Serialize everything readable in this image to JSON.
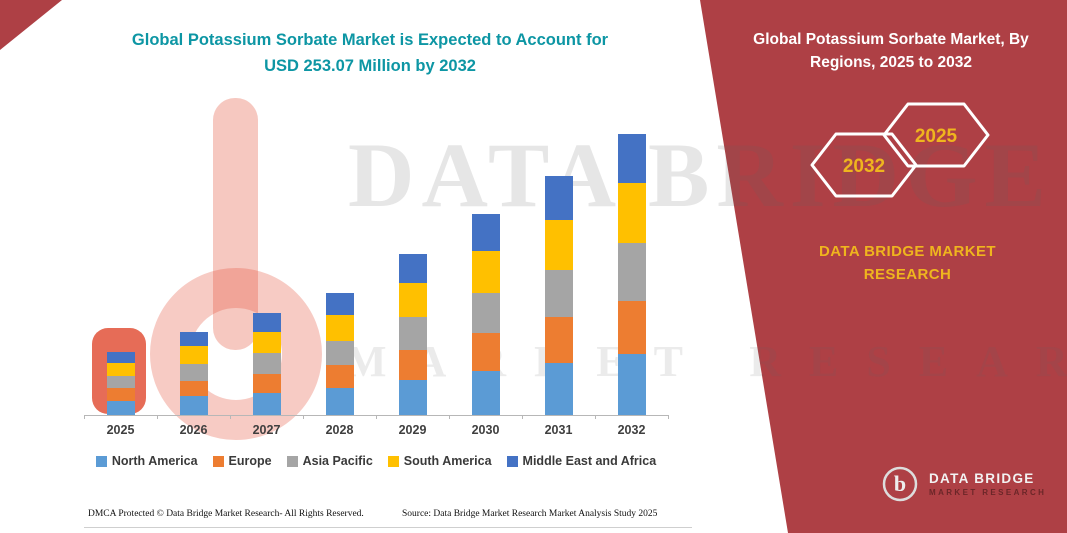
{
  "title": {
    "line1": "Global Potassium Sorbate Market is Expected to Account for",
    "line2": "USD 253.07 Million by 2032"
  },
  "panel": {
    "heading": "Global Potassium Sorbate Market, By Regions, 2025 to 2032",
    "badge_back": "2032",
    "badge_front": "2025",
    "brand_line1": "DATA BRIDGE MARKET",
    "brand_line2": "RESEARCH",
    "logo_title": "DATA BRIDGE",
    "logo_subtitle": "MARKET RESEARCH",
    "colors": {
      "panel_maroon": "#AE4045",
      "badge_gold": "#EFB51E",
      "title_teal": "#0D96A4"
    }
  },
  "watermark": {
    "line1": "DATA BRIDGE",
    "line2": "MARKET RESEARCH"
  },
  "footer": {
    "left": "DMCA Protected © Data Bridge Market Research-  All Rights Reserved.",
    "right": "Source: Data Bridge Market Research  Market Analysis Study 2025"
  },
  "chart_data": {
    "type": "bar",
    "stacked": true,
    "title": "Global Potassium Sorbate Market is Expected to Account for USD 253.07 Million by 2032",
    "units": "USD Million",
    "categories": [
      "2025",
      "2026",
      "2027",
      "2028",
      "2029",
      "2030",
      "2031",
      "2032"
    ],
    "series": [
      {
        "name": "North America",
        "color": "#5B9BD5",
        "values": [
          13,
          17,
          20,
          24,
          32,
          40,
          47,
          55
        ]
      },
      {
        "name": "Europe",
        "color": "#ED7D31",
        "values": [
          11,
          14,
          17,
          21,
          27,
          34,
          41,
          48
        ]
      },
      {
        "name": "Asia Pacific",
        "color": "#A5A5A5",
        "values": [
          11,
          15,
          19,
          22,
          29,
          36,
          43,
          52
        ]
      },
      {
        "name": "South America",
        "color": "#FFC000",
        "values": [
          12,
          16,
          19,
          23,
          31,
          38,
          45,
          54
        ]
      },
      {
        "name": "Middle East and Africa",
        "color": "#4472C4",
        "values": [
          10,
          13,
          17,
          20,
          26,
          33,
          39,
          44
        ]
      }
    ],
    "totals_estimated": [
      57,
      75,
      92,
      110,
      145,
      181,
      215,
      253.07
    ],
    "xlabel": "",
    "ylabel": "",
    "y_axis_visible": false,
    "gridlines": false,
    "legend_position": "bottom"
  }
}
